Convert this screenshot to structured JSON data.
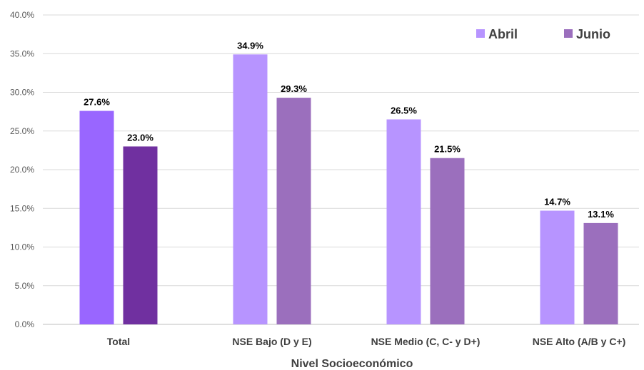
{
  "chart_data": {
    "type": "bar",
    "categories": [
      "Total",
      "NSE Bajo (D y E)",
      "NSE Medio (C, C- y D+)",
      "NSE Alto (A/B y C+)"
    ],
    "series": [
      {
        "name": "Abril",
        "values": [
          27.6,
          34.9,
          26.5,
          14.7
        ],
        "labels": [
          "27.6%",
          "34.9%",
          "26.5%",
          "14.7%"
        ],
        "colors": [
          "#9966ff",
          "#b794ff",
          "#b794ff",
          "#b794ff"
        ]
      },
      {
        "name": "Junio",
        "values": [
          23.0,
          29.3,
          21.5,
          13.1
        ],
        "labels": [
          "23.0%",
          "29.3%",
          "21.5%",
          "13.1%"
        ],
        "colors": [
          "#7030a0",
          "#9b6fbd",
          "#9b6fbd",
          "#9b6fbd"
        ]
      }
    ],
    "xlabel": "Nivel Socioeconómico",
    "ylabel": "",
    "ylim": [
      0,
      40
    ],
    "yticks": [
      {
        "value": 0,
        "label": "0.0%"
      },
      {
        "value": 5,
        "label": "5.0%"
      },
      {
        "value": 10,
        "label": "10.0%"
      },
      {
        "value": 15,
        "label": "15.0%"
      },
      {
        "value": 20,
        "label": "20.0%"
      },
      {
        "value": 25,
        "label": "25.0%"
      },
      {
        "value": 30,
        "label": "30.0%"
      },
      {
        "value": 35,
        "label": "35.0%"
      },
      {
        "value": 40,
        "label": "40.0%"
      }
    ],
    "grid": true,
    "legend": {
      "position": "top-right",
      "items": [
        {
          "label": "Abril",
          "color": "#b794ff"
        },
        {
          "label": "Junio",
          "color": "#9b6fbd"
        }
      ]
    }
  }
}
